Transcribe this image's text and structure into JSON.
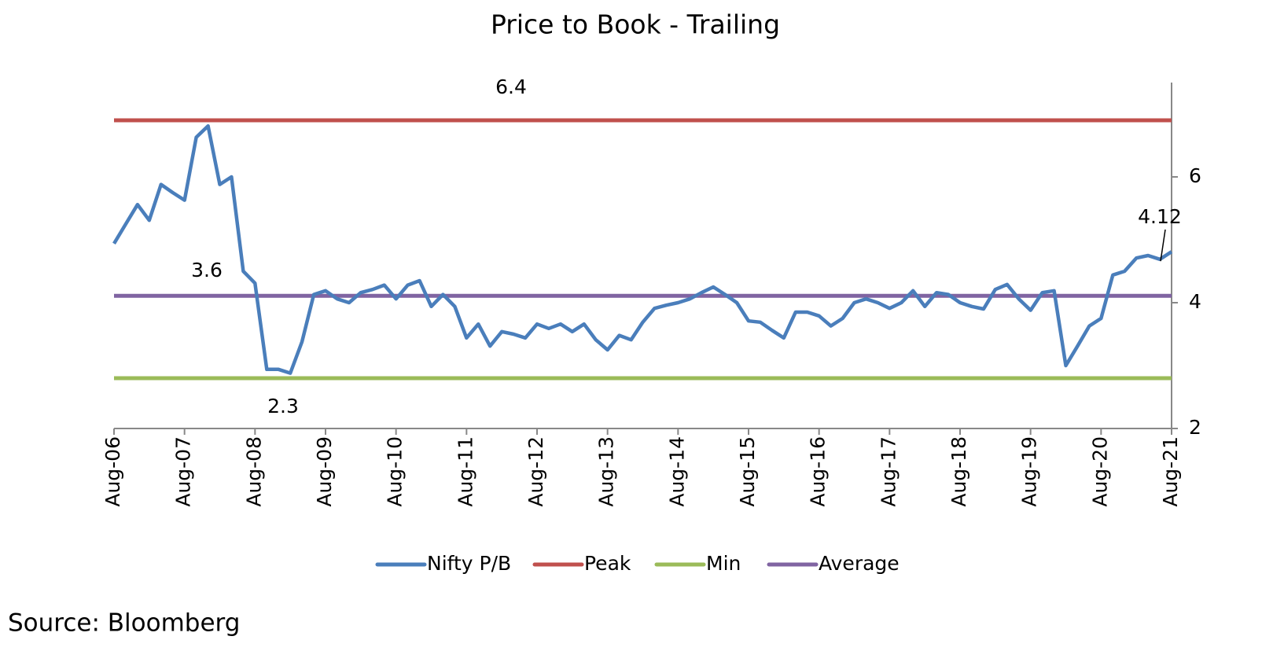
{
  "chart_data": {
    "type": "line",
    "title": "Price to Book - Trailing",
    "source": "Source: Bloomberg",
    "annotations": [
      "6.4",
      "3.6",
      "2.3",
      "4.12"
    ],
    "categories": [
      "Aug-06",
      null,
      null,
      null,
      null,
      null,
      "Aug-07",
      null,
      null,
      null,
      null,
      null,
      "Aug-08",
      null,
      null,
      null,
      null,
      null,
      "Aug-09",
      null,
      null,
      null,
      null,
      null,
      "Aug-10",
      null,
      null,
      null,
      null,
      null,
      "Aug-11",
      null,
      null,
      null,
      null,
      null,
      "Aug-12",
      null,
      null,
      null,
      null,
      null,
      "Aug-13",
      null,
      null,
      null,
      null,
      null,
      "Aug-14",
      null,
      null,
      null,
      null,
      null,
      "Aug-15",
      null,
      null,
      null,
      null,
      null,
      "Aug-16",
      null,
      null,
      null,
      null,
      null,
      "Aug-17",
      null,
      null,
      null,
      null,
      null,
      "Aug-18",
      null,
      null,
      null,
      null,
      null,
      "Aug-19",
      null,
      null,
      null,
      null,
      null,
      "Aug-20",
      null,
      null,
      null,
      null,
      null,
      "Aug-21"
    ],
    "ylim": [
      2,
      7.5
    ],
    "yticks": [
      2,
      4,
      6
    ],
    "series": [
      {
        "name": "Nifty P/B",
        "color": "#4a7ebb",
        "values": [
          4.94,
          5.25,
          5.56,
          5.31,
          5.88,
          5.75,
          5.63,
          6.63,
          6.81,
          5.88,
          6.0,
          4.5,
          4.31,
          2.94,
          2.94,
          2.88,
          3.38,
          4.13,
          4.19,
          4.06,
          4.0,
          4.16,
          4.21,
          4.28,
          4.06,
          4.28,
          4.35,
          3.94,
          4.13,
          3.94,
          3.44,
          3.66,
          3.31,
          3.54,
          3.5,
          3.44,
          3.66,
          3.59,
          3.66,
          3.54,
          3.66,
          3.41,
          3.25,
          3.48,
          3.41,
          3.69,
          3.91,
          3.96,
          4.0,
          4.06,
          4.16,
          4.25,
          4.13,
          4.0,
          3.71,
          3.69,
          3.56,
          3.44,
          3.85,
          3.85,
          3.79,
          3.63,
          3.75,
          4.0,
          4.06,
          4.0,
          3.91,
          4.0,
          4.19,
          3.94,
          4.16,
          4.13,
          4.0,
          3.94,
          3.9,
          4.21,
          4.29,
          4.06,
          3.88,
          4.16,
          4.19,
          3.0,
          3.31,
          3.63,
          3.75,
          4.44,
          4.5,
          4.71,
          4.75,
          4.69,
          4.81
        ]
      },
      {
        "name": "Peak",
        "color": "#c0504d",
        "values": [
          6.9,
          6.9,
          6.9,
          6.9,
          6.9,
          6.9,
          6.9,
          6.9,
          6.9,
          6.9,
          6.9,
          6.9,
          6.9,
          6.9,
          6.9,
          6.9,
          6.9,
          6.9,
          6.9,
          6.9,
          6.9,
          6.9,
          6.9,
          6.9,
          6.9,
          6.9,
          6.9,
          6.9,
          6.9,
          6.9,
          6.9,
          6.9,
          6.9,
          6.9,
          6.9,
          6.9,
          6.9,
          6.9,
          6.9,
          6.9,
          6.9,
          6.9,
          6.9,
          6.9,
          6.9,
          6.9,
          6.9,
          6.9,
          6.9,
          6.9,
          6.9,
          6.9,
          6.9,
          6.9,
          6.9,
          6.9,
          6.9,
          6.9,
          6.9,
          6.9,
          6.9,
          6.9,
          6.9,
          6.9,
          6.9,
          6.9,
          6.9,
          6.9,
          6.9,
          6.9,
          6.9,
          6.9,
          6.9,
          6.9,
          6.9,
          6.9,
          6.9,
          6.9,
          6.9,
          6.9,
          6.9,
          6.9,
          6.9,
          6.9,
          6.9,
          6.9,
          6.9,
          6.9,
          6.9,
          6.9,
          6.9
        ]
      },
      {
        "name": "Min",
        "color": "#9bbb59",
        "values": [
          2.8,
          2.8,
          2.8,
          2.8,
          2.8,
          2.8,
          2.8,
          2.8,
          2.8,
          2.8,
          2.8,
          2.8,
          2.8,
          2.8,
          2.8,
          2.8,
          2.8,
          2.8,
          2.8,
          2.8,
          2.8,
          2.8,
          2.8,
          2.8,
          2.8,
          2.8,
          2.8,
          2.8,
          2.8,
          2.8,
          2.8,
          2.8,
          2.8,
          2.8,
          2.8,
          2.8,
          2.8,
          2.8,
          2.8,
          2.8,
          2.8,
          2.8,
          2.8,
          2.8,
          2.8,
          2.8,
          2.8,
          2.8,
          2.8,
          2.8,
          2.8,
          2.8,
          2.8,
          2.8,
          2.8,
          2.8,
          2.8,
          2.8,
          2.8,
          2.8,
          2.8,
          2.8,
          2.8,
          2.8,
          2.8,
          2.8,
          2.8,
          2.8,
          2.8,
          2.8,
          2.8,
          2.8,
          2.8,
          2.8,
          2.8,
          2.8,
          2.8,
          2.8,
          2.8,
          2.8,
          2.8,
          2.8,
          2.8,
          2.8,
          2.8,
          2.8,
          2.8,
          2.8,
          2.8,
          2.8,
          2.8
        ]
      },
      {
        "name": "Average",
        "color": "#8064a2",
        "values": [
          4.11,
          4.11,
          4.11,
          4.11,
          4.11,
          4.11,
          4.11,
          4.11,
          4.11,
          4.11,
          4.11,
          4.11,
          4.11,
          4.11,
          4.11,
          4.11,
          4.11,
          4.11,
          4.11,
          4.11,
          4.11,
          4.11,
          4.11,
          4.11,
          4.11,
          4.11,
          4.11,
          4.11,
          4.11,
          4.11,
          4.11,
          4.11,
          4.11,
          4.11,
          4.11,
          4.11,
          4.11,
          4.11,
          4.11,
          4.11,
          4.11,
          4.11,
          4.11,
          4.11,
          4.11,
          4.11,
          4.11,
          4.11,
          4.11,
          4.11,
          4.11,
          4.11,
          4.11,
          4.11,
          4.11,
          4.11,
          4.11,
          4.11,
          4.11,
          4.11,
          4.11,
          4.11,
          4.11,
          4.11,
          4.11,
          4.11,
          4.11,
          4.11,
          4.11,
          4.11,
          4.11,
          4.11,
          4.11,
          4.11,
          4.11,
          4.11,
          4.11,
          4.11,
          4.11,
          4.11,
          4.11,
          4.11,
          4.11,
          4.11,
          4.11,
          4.11,
          4.11,
          4.11,
          4.11,
          4.11,
          4.11
        ]
      }
    ]
  }
}
